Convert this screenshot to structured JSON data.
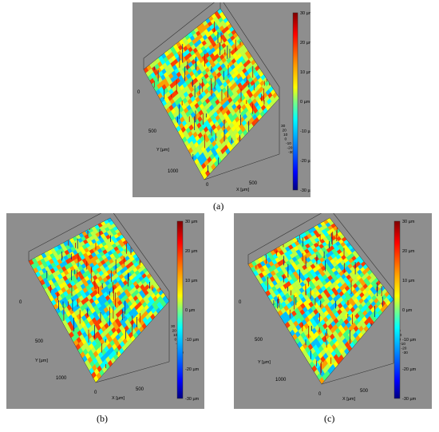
{
  "figure": {
    "panels": [
      {
        "id": "a",
        "caption": "(a)",
        "colorbar": {
          "labels": [
            "30 µm",
            "20 µm",
            "10 µm",
            "0 µm",
            "-10 µm",
            "-20 µm",
            "-30 µm"
          ]
        },
        "z_ticks": [
          "30",
          "20",
          "10",
          "0",
          "-10",
          "-20",
          "-30"
        ],
        "y_axis": {
          "label": "Y [µm]",
          "ticks": [
            "0",
            "500",
            "1000"
          ]
        },
        "x_axis": {
          "label": "X [µm]",
          "ticks": [
            "0",
            "500"
          ]
        }
      },
      {
        "id": "b",
        "caption": "(b)",
        "colorbar": {
          "labels": [
            "30 µm",
            "20 µm",
            "10 µm",
            "0 µm",
            "-10 µm",
            "-20 µm",
            "-30 µm"
          ]
        },
        "z_ticks": [
          "30",
          "20",
          "10",
          "0",
          "-10",
          "-20",
          "-30"
        ],
        "y_axis": {
          "label": "Y [µm]",
          "ticks": [
            "0",
            "500",
            "1000"
          ]
        },
        "x_axis": {
          "label": "X [µm]",
          "ticks": [
            "0",
            "500"
          ]
        }
      },
      {
        "id": "c",
        "caption": "(c)",
        "colorbar": {
          "labels": [
            "30 µm",
            "20 µm",
            "10 µm",
            "0 µm",
            "-10 µm",
            "-20 µm",
            "-30 µm"
          ]
        },
        "z_ticks": [
          "30",
          "20",
          "10",
          "0",
          "-10",
          "-20",
          "-30"
        ],
        "y_axis": {
          "label": "Y [µm]",
          "ticks": [
            "0",
            "500",
            "1000"
          ]
        },
        "x_axis": {
          "label": "X [µm]",
          "ticks": [
            "0",
            "500"
          ]
        }
      }
    ],
    "colormap": [
      "#00007f",
      "#0000ff",
      "#00bfff",
      "#00ffff",
      "#3fff7f",
      "#bfff3f",
      "#ffff00",
      "#ff9f00",
      "#ff3f00",
      "#7f0000"
    ]
  }
}
